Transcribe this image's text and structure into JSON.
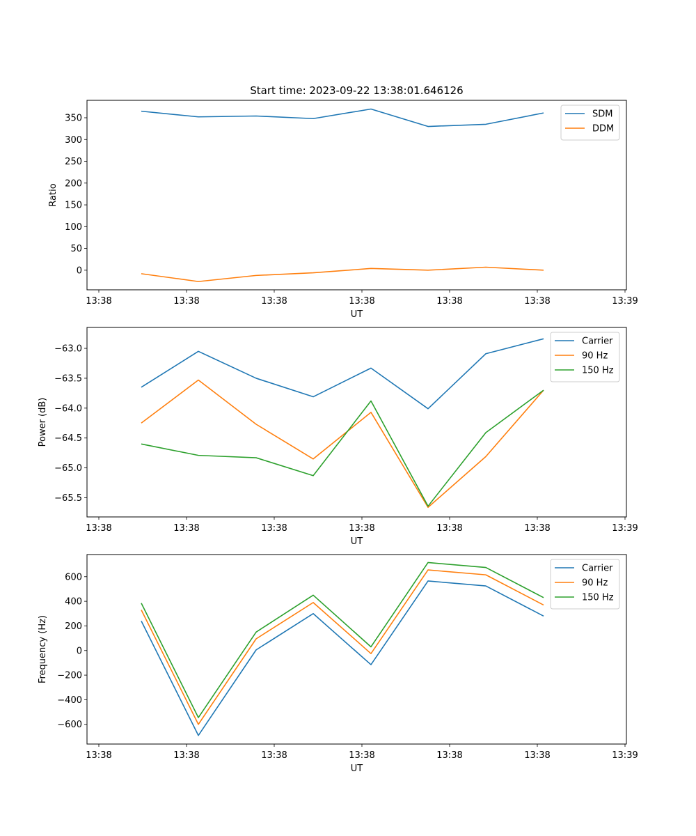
{
  "chart_data": [
    {
      "type": "line",
      "title": "Start time: 2023-09-22 13:38:01.646126",
      "xlabel": "UT",
      "ylabel": "Ratio",
      "x_tick_labels": [
        "13:38",
        "13:38",
        "13:38",
        "13:38",
        "13:38",
        "13:38",
        "13:39"
      ],
      "y_ticks": [
        0,
        50,
        100,
        150,
        200,
        250,
        300,
        350
      ],
      "ylim": [
        -45,
        390
      ],
      "legend_position": "top-right",
      "series": [
        {
          "name": "SDM",
          "color": "#1f77b4",
          "values": [
            365,
            352,
            354,
            348,
            370,
            330,
            335,
            361
          ]
        },
        {
          "name": "DDM",
          "color": "#ff7f0e",
          "values": [
            -8,
            -26,
            -12,
            -6,
            4,
            0,
            7,
            0
          ]
        }
      ]
    },
    {
      "type": "line",
      "title": "",
      "xlabel": "UT",
      "ylabel": "Power (dB)",
      "x_tick_labels": [
        "13:38",
        "13:38",
        "13:38",
        "13:38",
        "13:38",
        "13:38",
        "13:39"
      ],
      "y_ticks": [
        "-63.0",
        "-63.5",
        "-64.0",
        "-64.5",
        "-65.0",
        "-65.5"
      ],
      "ylim": [
        -65.82,
        -62.65
      ],
      "legend_position": "top-right",
      "series": [
        {
          "name": "Carrier",
          "color": "#1f77b4",
          "values": [
            -63.65,
            -63.05,
            -63.5,
            -63.81,
            -63.33,
            -64.01,
            -63.09,
            -62.84
          ]
        },
        {
          "name": "90 Hz",
          "color": "#ff7f0e",
          "values": [
            -64.25,
            -63.53,
            -64.27,
            -64.85,
            -64.07,
            -65.66,
            -64.81,
            -63.7
          ]
        },
        {
          "name": "150 Hz",
          "color": "#2ca02c",
          "values": [
            -64.6,
            -64.79,
            -64.83,
            -65.13,
            -63.88,
            -65.64,
            -64.41,
            -63.7
          ]
        }
      ]
    },
    {
      "type": "line",
      "title": "",
      "xlabel": "UT",
      "ylabel": "Frequency (Hz)",
      "x_tick_labels": [
        "13:38",
        "13:38",
        "13:38",
        "13:38",
        "13:38",
        "13:38",
        "13:39"
      ],
      "y_ticks": [
        -600,
        -400,
        -200,
        0,
        200,
        400,
        600
      ],
      "ylim": [
        -760,
        780
      ],
      "legend_position": "top-right",
      "series": [
        {
          "name": "Carrier",
          "color": "#1f77b4",
          "values": [
            240,
            -690,
            5,
            300,
            -115,
            565,
            525,
            280
          ]
        },
        {
          "name": "90 Hz",
          "color": "#ff7f0e",
          "values": [
            330,
            -600,
            95,
            390,
            -25,
            655,
            615,
            370
          ]
        },
        {
          "name": "150 Hz",
          "color": "#2ca02c",
          "values": [
            385,
            -545,
            150,
            450,
            30,
            715,
            675,
            430
          ]
        }
      ]
    }
  ]
}
